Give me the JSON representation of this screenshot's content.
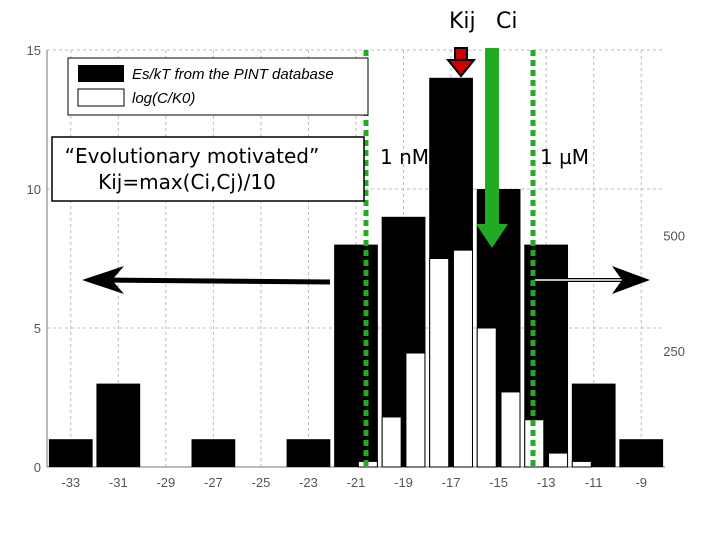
{
  "chart_data": {
    "type": "bar",
    "x_ticks": [
      -33,
      -31,
      -29,
      -27,
      -25,
      -23,
      -21,
      -19,
      -17,
      -15,
      -13,
      -11,
      -9
    ],
    "xlim": [
      -34,
      -8
    ],
    "y_left_ticks": [
      0,
      5,
      10,
      15
    ],
    "ylim": [
      0,
      15
    ],
    "y_right_ticks": [
      250,
      500
    ],
    "grid": true,
    "series": [
      {
        "name": "Es/kT from the PINT database",
        "color": "#000000",
        "bin_width": 2,
        "x": [
          -33,
          -31,
          -29,
          -27,
          -25,
          -23,
          -21,
          -19,
          -17,
          -15,
          -13,
          -11,
          -9
        ],
        "values": [
          1,
          3,
          0,
          1,
          0,
          1,
          8,
          9,
          14,
          10,
          8,
          3,
          1
        ]
      },
      {
        "name": "log(C/K0)",
        "color": "#ffffff",
        "bin_width": 0.8,
        "x": [
          -20.5,
          -19.5,
          -18.5,
          -17.5,
          -16.5,
          -15.5,
          -14.5,
          -13.5,
          -12.5,
          -11.5
        ],
        "values": [
          0.2,
          1.8,
          4.1,
          7.5,
          7.8,
          5.0,
          2.7,
          1.7,
          0.5,
          0.2
        ]
      }
    ],
    "legend": {
      "position": "top-left",
      "entries": [
        "Es/kT from the PINT database",
        "log(C/K0)"
      ]
    },
    "annotations": {
      "kij_label": "Kij",
      "ci_label": "Ci",
      "nm_label": "1 nM",
      "um_label": "1 µM",
      "evo_line1": "“Evolutionary motivated”",
      "evo_line2": "Kij=max(Ci,Cj)/10"
    },
    "colors": {
      "kij_arrow": "#cc0000",
      "ci_arrow": "#22aa22",
      "threshold_lines": "#22aa22"
    }
  }
}
